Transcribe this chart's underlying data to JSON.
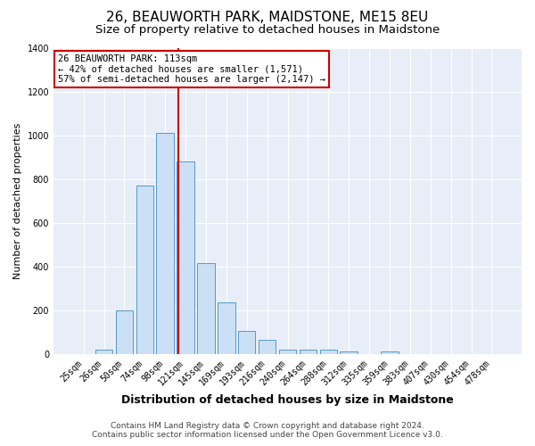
{
  "title": "26, BEAUWORTH PARK, MAIDSTONE, ME15 8EU",
  "subtitle": "Size of property relative to detached houses in Maidstone",
  "xlabel": "Distribution of detached houses by size in Maidstone",
  "ylabel": "Number of detached properties",
  "categories": [
    "25sqm",
    "26sqm",
    "50sqm",
    "74sqm",
    "98sqm",
    "121sqm",
    "145sqm",
    "169sqm",
    "193sqm",
    "216sqm",
    "240sqm",
    "264sqm",
    "288sqm",
    "312sqm",
    "335sqm",
    "359sqm",
    "383sqm",
    "407sqm",
    "430sqm",
    "454sqm",
    "478sqm"
  ],
  "values": [
    0,
    20,
    200,
    770,
    1010,
    880,
    415,
    235,
    105,
    65,
    20,
    20,
    20,
    10,
    0,
    10,
    0,
    0,
    0,
    0,
    0
  ],
  "bar_color": "#cce0f5",
  "bar_edge_color": "#5599cc",
  "line_color": "#cc0000",
  "ylim": [
    0,
    1400
  ],
  "yticks": [
    0,
    200,
    400,
    600,
    800,
    1000,
    1200,
    1400
  ],
  "annotation_text": "26 BEAUWORTH PARK: 113sqm\n← 42% of detached houses are smaller (1,571)\n57% of semi-detached houses are larger (2,147) →",
  "annotation_box_color": "#ffffff",
  "annotation_box_edge": "#cc0000",
  "footer_line1": "Contains HM Land Registry data © Crown copyright and database right 2024.",
  "footer_line2": "Contains public sector information licensed under the Open Government Licence v3.0.",
  "background_color": "#e8eef8",
  "grid_color": "#ffffff",
  "title_fontsize": 11,
  "subtitle_fontsize": 9.5,
  "xlabel_fontsize": 9,
  "ylabel_fontsize": 8,
  "tick_fontsize": 7,
  "footer_fontsize": 6.5,
  "annotation_fontsize": 7.5
}
